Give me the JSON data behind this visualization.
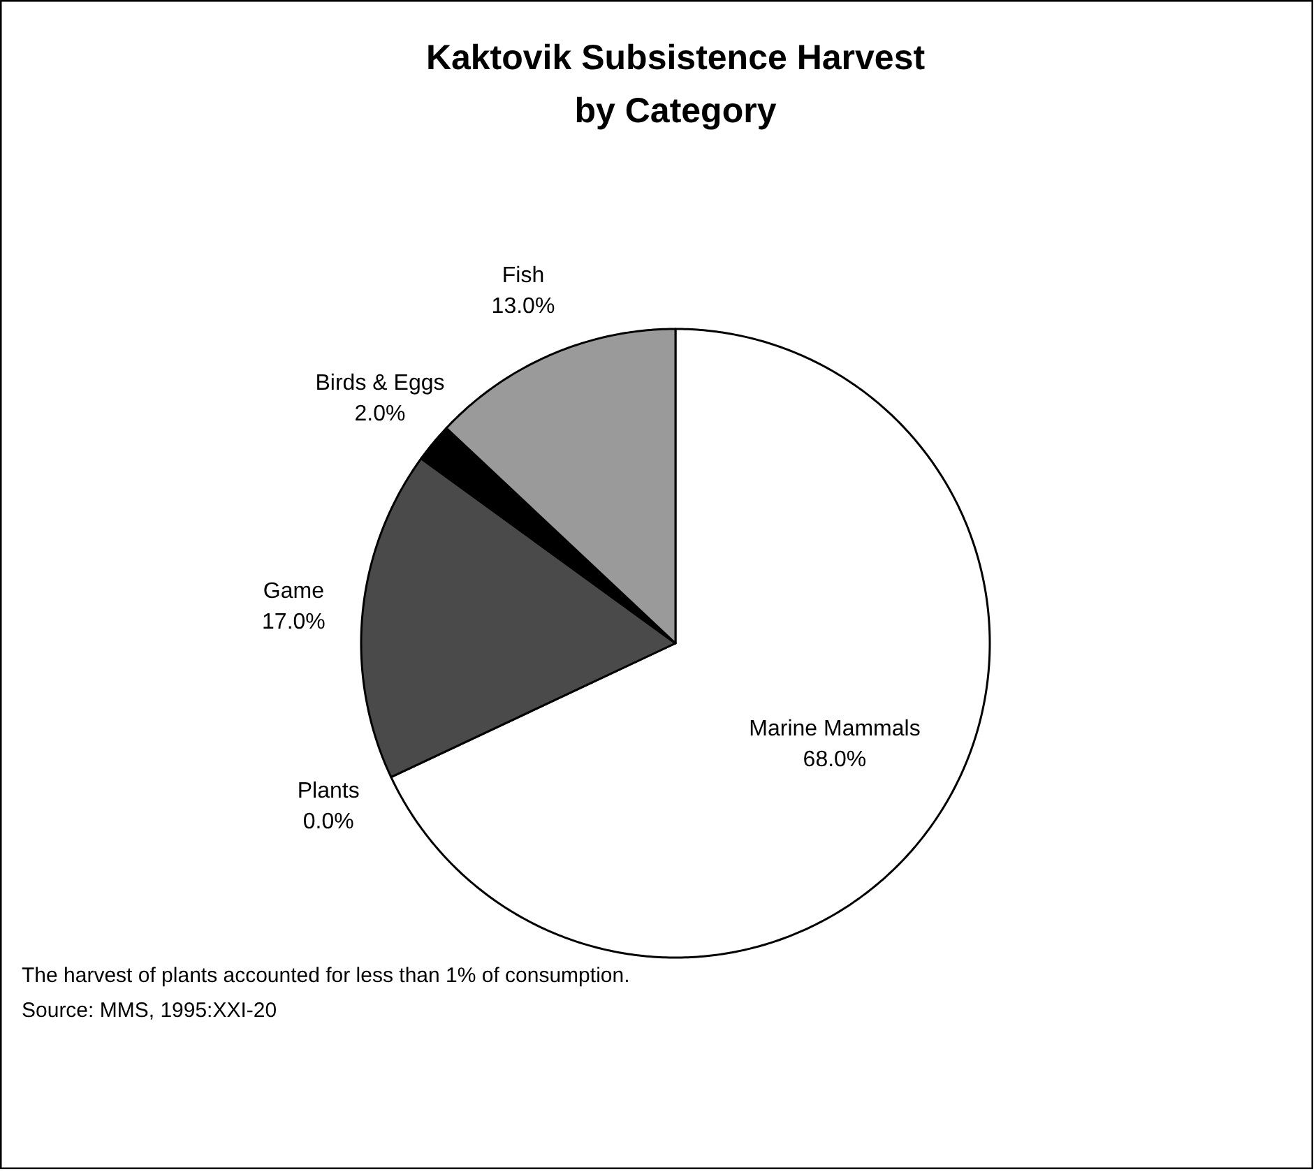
{
  "chart_data": {
    "type": "pie",
    "title": "Kaktovik Subsistence Harvest\nby Category",
    "categories": [
      "Marine Mammals",
      "Plants",
      "Game",
      "Birds & Eggs",
      "Fish"
    ],
    "values": [
      68.0,
      0.0,
      17.0,
      2.0,
      13.0
    ],
    "colors": [
      "#ffffff",
      "#ffffff",
      "#4a4a4a",
      "#000000",
      "#9a9a9a"
    ],
    "value_labels": [
      "68.0%",
      "0.0%",
      "17.0%",
      "2.0%",
      "13.0%"
    ],
    "annotations": [
      "The harvest of plants accounted for less than 1% of consumption.",
      "Source: MMS, 1995:XXI-20"
    ]
  }
}
